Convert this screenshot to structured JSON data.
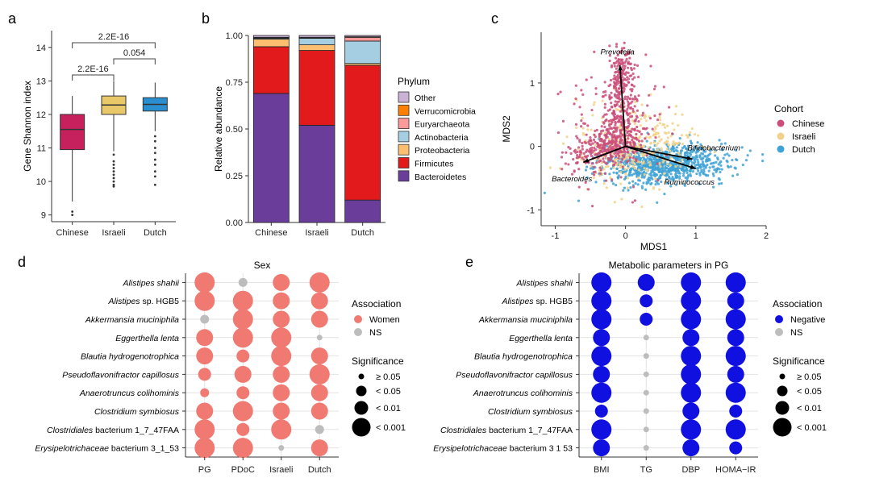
{
  "panel_labels": [
    "a",
    "b",
    "c",
    "d",
    "e"
  ],
  "chart_data": [
    {
      "panel": "a",
      "type": "box",
      "title": "",
      "xlabel": "",
      "ylabel": "Gene Shannon index",
      "ylim": [
        8.8,
        14.5
      ],
      "yticks": [
        "9",
        "10",
        "11",
        "12",
        "13",
        "14"
      ],
      "categories": [
        "Chinese",
        "Israeli",
        "Dutch"
      ],
      "colors": [
        "#C7215D",
        "#E9C86A",
        "#2A8FD0"
      ],
      "boxes": [
        {
          "name": "Chinese",
          "q1": 10.95,
          "median": 11.55,
          "q3": 12.0,
          "whisker_low": 9.4,
          "whisker_high": 12.55,
          "outliers": [
            9.1,
            9.0
          ]
        },
        {
          "name": "Israeli",
          "q1": 12.0,
          "median": 12.28,
          "q3": 12.55,
          "whisker_low": 10.9,
          "whisker_high": 13.0,
          "outliers": [
            10.8,
            10.6,
            10.5,
            10.4,
            10.3,
            10.2,
            10.1,
            10.0,
            9.9,
            9.85
          ]
        },
        {
          "name": "Dutch",
          "q1": 12.1,
          "median": 12.3,
          "q3": 12.5,
          "whisker_low": 11.5,
          "whisker_high": 12.95,
          "outliers": [
            11.35,
            11.2,
            11.0,
            10.85,
            10.65,
            10.5,
            10.3,
            10.15,
            9.9
          ]
        }
      ],
      "annotations": [
        {
          "from": "Chinese",
          "to": "Israeli",
          "text": "2.2E-16"
        },
        {
          "from": "Israeli",
          "to": "Dutch",
          "text": "0.054"
        },
        {
          "from": "Chinese",
          "to": "Dutch",
          "text": "2.2E-16"
        }
      ]
    },
    {
      "panel": "b",
      "type": "bar",
      "stacked": true,
      "title": "",
      "xlabel": "",
      "ylabel": "Relative abundance",
      "ylim": [
        0,
        1
      ],
      "yticks": [
        "0.00",
        "0.25",
        "0.50",
        "0.75",
        "1.00"
      ],
      "categories": [
        "Chinese",
        "Israeli",
        "Dutch"
      ],
      "legend_title": "Phylum",
      "series": [
        {
          "name": "Bacteroidetes",
          "color": "#6A3D9A",
          "values": [
            0.69,
            0.52,
            0.12
          ]
        },
        {
          "name": "Firmicutes",
          "color": "#E31A1C",
          "values": [
            0.25,
            0.4,
            0.72
          ]
        },
        {
          "name": "Proteobacteria",
          "color": "#FDBF6F",
          "values": [
            0.04,
            0.03,
            0.01
          ]
        },
        {
          "name": "Actinobacteria",
          "color": "#A6CEE3",
          "values": [
            0.005,
            0.035,
            0.12
          ]
        },
        {
          "name": "Euryarchaeota",
          "color": "#FB9A99",
          "values": [
            0.002,
            0.002,
            0.02
          ]
        },
        {
          "name": "Verrucomicrobia",
          "color": "#FF7F00",
          "values": [
            0.003,
            0.003,
            0.003
          ]
        },
        {
          "name": "Other",
          "color": "#CAB2D6",
          "values": [
            0.01,
            0.01,
            0.007
          ]
        }
      ],
      "legend_order": [
        "Other",
        "Verrucomicrobia",
        "Euryarchaeota",
        "Actinobacteria",
        "Proteobacteria",
        "Firmicutes",
        "Bacteroidetes"
      ]
    },
    {
      "panel": "c",
      "type": "scatter",
      "title": "",
      "xlabel": "MDS1",
      "ylabel": "MDS2",
      "xlim": [
        -1.2,
        2.0
      ],
      "ylim": [
        -1.25,
        1.8
      ],
      "xticks": [
        -1,
        0,
        1,
        2
      ],
      "yticks": [
        -1,
        0,
        1
      ],
      "legend_title": "Cohort",
      "series": [
        {
          "name": "Chinese",
          "color": "#CB4E7A",
          "center": [
            -0.2,
            0.3
          ],
          "spread": [
            0.35,
            0.45
          ],
          "n": 750
        },
        {
          "name": "Israeli",
          "color": "#F2D28A",
          "center": [
            0.1,
            0.0
          ],
          "spread": [
            0.4,
            0.3
          ],
          "n": 350
        },
        {
          "name": "Dutch",
          "color": "#3FA2D6",
          "center": [
            0.55,
            -0.3
          ],
          "spread": [
            0.45,
            0.15
          ],
          "n": 900
        }
      ],
      "vectors": [
        {
          "name": "Prevotella",
          "x": -0.08,
          "y": 1.28
        },
        {
          "name": "Bifidobacterium",
          "x": 0.95,
          "y": -0.2
        },
        {
          "name": "Ruminococcus",
          "x": 1.0,
          "y": -0.35
        },
        {
          "name": "Bacteroides",
          "x": -0.6,
          "y": -0.25
        }
      ]
    },
    {
      "panel": "d",
      "type": "dot",
      "title": "Sex",
      "categories": [
        "PG",
        "PDoC",
        "Israeli",
        "Dutch"
      ],
      "rows": [
        "Alistipes shahii",
        "Alistipes sp. HGB5",
        "Akkermansia muciniphila",
        "Eggerthella lenta",
        "Blautia hydrogenotrophica",
        "Pseudoflavonifractor capillosus",
        "Anaerotruncus colihominis",
        "Clostridium symbiosus",
        "Clostridiales bacterium 1_7_47FAA",
        "Erysipelotrichaceae bacterium 3_1_53"
      ],
      "rows_italic_part": [
        "Alistipes shahii",
        "Alistipes",
        "Akkermansia muciniphila",
        "Eggerthella lenta",
        "Blautia hydrogenotrophica",
        "Pseudoflavonifractor capillosus",
        "Anaerotruncus colihominis",
        "Clostridium symbiosus",
        "Clostridiales",
        "Erysipelotrichaceae"
      ],
      "rows_plain_part": [
        "",
        " sp. HGB5",
        "",
        "",
        "",
        "",
        "",
        "",
        " bacterium 1_7_47FAA",
        " bacterium 3_1_53"
      ],
      "significance_levels": [
        4,
        4,
        1,
        3,
        3,
        2,
        1,
        3,
        4,
        4,
        1,
        4,
        4,
        4,
        2,
        3,
        2,
        4,
        2,
        4,
        3,
        3,
        3,
        4,
        4,
        3,
        3,
        3,
        4,
        0,
        4,
        3,
        3,
        0,
        3,
        4,
        3,
        3,
        1,
        3
      ],
      "association": [
        "Women",
        "Women",
        "NS",
        "Women",
        "Women",
        "Women",
        "Women",
        "Women",
        "Women",
        "Women",
        "NS",
        "Women",
        "Women",
        "Women",
        "Women",
        "Women",
        "Women",
        "Women",
        "Women",
        "Women",
        "Women",
        "Women",
        "Women",
        "Women",
        "Women",
        "Women",
        "Women",
        "Women",
        "Women",
        "NS",
        "Women",
        "Women",
        "Women",
        "NS",
        "Women",
        "Women",
        "Women",
        "Women",
        "NS",
        "Women"
      ],
      "legend_association_title": "Association",
      "legend_association": [
        {
          "label": "Women",
          "color": "#F07A72"
        },
        {
          "label": "NS",
          "color": "#BDBDBD"
        }
      ],
      "legend_significance_title": "Significance",
      "legend_significance": [
        "≥ 0.05",
        "< 0.05",
        "< 0.01",
        "< 0.001"
      ]
    },
    {
      "panel": "e",
      "type": "dot",
      "title": "Metabolic parameters in PG",
      "categories": [
        "BMI",
        "TG",
        "DBP",
        "HOMA−IR"
      ],
      "rows": [
        "Alistipes shahii",
        "Alistipes sp. HGB5",
        "Akkermansia muciniphila",
        "Eggerthella lenta",
        "Blautia hydrogenotrophica",
        "Pseudoflavonifractor capillosus",
        "Anaerotruncus colihominis",
        "Clostridium symbiosus",
        "Clostridiales bacterium 1_7_47FAA",
        "Erysipelotrichaceae bacterium 3_1_53"
      ],
      "rows_italic_part": [
        "Alistipes shahii",
        "Alistipes",
        "Akkermansia muciniphila",
        "Eggerthella lenta",
        "Blautia hydrogenotrophica",
        "Pseudoflavonifractor capillosus",
        "Anaerotruncus colihominis",
        "Clostridium symbiosus",
        "Clostridiales",
        "Erysipelotrichaceae"
      ],
      "rows_plain_part": [
        "",
        " sp. HGB5",
        "",
        "",
        "",
        "",
        "",
        "",
        " bacterium 1_7_47FAA",
        " bacterium 3  1  53"
      ],
      "significance_levels": [
        4,
        4,
        4,
        3,
        4,
        3,
        4,
        2,
        4,
        3,
        3,
        2,
        2,
        0,
        0,
        0,
        0,
        0,
        0,
        0,
        4,
        4,
        4,
        3,
        4,
        4,
        4,
        3,
        4,
        3,
        4,
        3,
        4,
        3,
        4,
        3,
        4,
        2,
        4,
        2
      ],
      "association": [
        "Negative",
        "Negative",
        "Negative",
        "Negative",
        "Negative",
        "Negative",
        "Negative",
        "Negative",
        "Negative",
        "Negative",
        "Negative",
        "Negative",
        "Negative",
        "NS",
        "NS",
        "NS",
        "NS",
        "NS",
        "NS",
        "NS",
        "Negative",
        "Negative",
        "Negative",
        "Negative",
        "Negative",
        "Negative",
        "Negative",
        "Negative",
        "Negative",
        "Negative",
        "Negative",
        "Negative",
        "Negative",
        "Negative",
        "Negative",
        "Negative",
        "Negative",
        "Negative",
        "Negative",
        "Negative"
      ],
      "legend_association_title": "Association",
      "legend_association": [
        {
          "label": "Negative",
          "color": "#1010E0"
        },
        {
          "label": "NS",
          "color": "#BDBDBD"
        }
      ],
      "legend_significance_title": "Significance",
      "legend_significance": [
        "≥ 0.05",
        "< 0.05",
        "< 0.01",
        "< 0.001"
      ]
    }
  ]
}
